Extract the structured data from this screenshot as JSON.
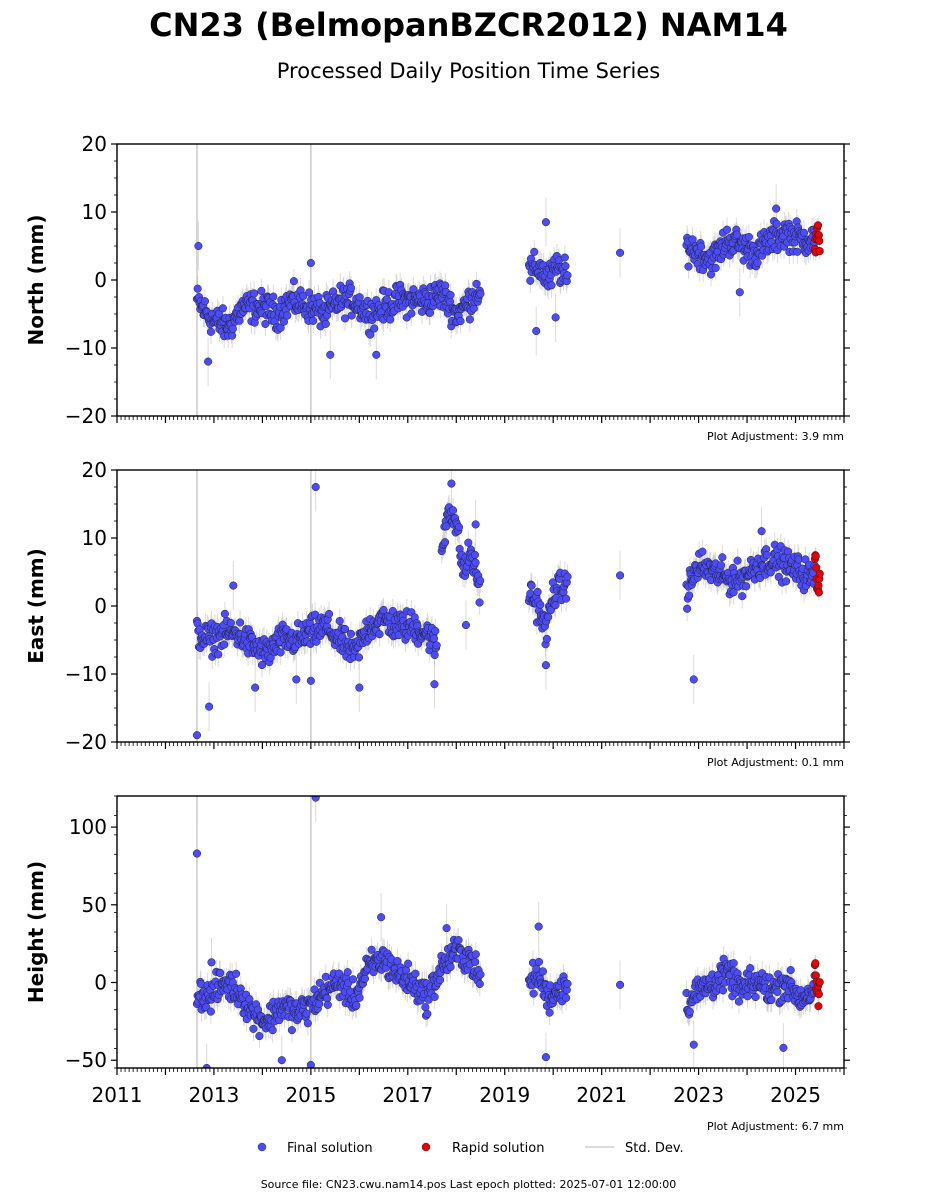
{
  "title": "CN23 (BelmopanBZCR2012) NAM14",
  "subtitle": "Processed Daily Position Time Series",
  "legend": {
    "placement": "bottom-center",
    "items": [
      {
        "label": "Final solution",
        "color": "#4b4bff"
      },
      {
        "label": "Rapid solution",
        "color": "#e60000"
      },
      {
        "label": "Std. Dev.",
        "color": "#cfcfcf"
      }
    ]
  },
  "footer": "Source file: CN23.cwu.nam14.pos  Last epoch plotted: 2025-07-01 12:00:00",
  "colors": {
    "final": "#4b4bff",
    "rapid": "#e60000",
    "stddev": "#bdbdbd"
  },
  "chart_data": [
    {
      "type": "scatter",
      "ylabel": "North (mm)",
      "ylim": [
        -20,
        20
      ],
      "yticks": [
        -20,
        -10,
        0,
        10,
        20
      ],
      "xlim": [
        2011,
        2026
      ],
      "xticks": [
        2011,
        2013,
        2015,
        2017,
        2019,
        2021,
        2023,
        2025
      ],
      "show_x_tick_labels": false,
      "adjustment": "Plot Adjustment: 3.9 mm",
      "segments": [
        {
          "x": [
            2012.65,
            2012.85,
            2013.0,
            2013.3,
            2013.6,
            2014.0,
            2014.3,
            2014.6,
            2015.0,
            2015.3,
            2015.6,
            2015.9,
            2016.2,
            2016.5,
            2016.8,
            2017.1,
            2017.4,
            2017.7,
            2018.0,
            2018.3,
            2018.5
          ],
          "y": [
            -3,
            -5,
            -6,
            -7,
            -4,
            -4,
            -5,
            -3,
            -4,
            -5,
            -3,
            -3,
            -5,
            -4,
            -3,
            -3,
            -3,
            -2,
            -5,
            -3,
            -1
          ]
        },
        {
          "x": [
            2019.5,
            2019.7,
            2019.9,
            2020.1,
            2020.3
          ],
          "y": [
            1,
            2,
            0,
            2,
            0
          ]
        },
        {
          "x": [
            2022.75,
            2023.0,
            2023.3,
            2023.6,
            2023.9,
            2024.2,
            2024.5,
            2024.8,
            2025.1,
            2025.4
          ],
          "y": [
            5,
            4,
            3,
            6,
            5,
            4,
            6,
            7,
            6,
            6
          ]
        }
      ],
      "outliers": [
        {
          "x": 2012.68,
          "y": 5
        },
        {
          "x": 2012.88,
          "y": -12
        },
        {
          "x": 2015.0,
          "y": 2.5
        },
        {
          "x": 2015.4,
          "y": -11
        },
        {
          "x": 2016.35,
          "y": -11
        },
        {
          "x": 2019.65,
          "y": -7.5
        },
        {
          "x": 2019.85,
          "y": 8.5
        },
        {
          "x": 2020.05,
          "y": -5.5
        },
        {
          "x": 2021.38,
          "y": 4
        },
        {
          "x": 2023.85,
          "y": -1.8
        },
        {
          "x": 2024.6,
          "y": 10.5
        }
      ],
      "rapid": {
        "x_start": 2025.4,
        "x_end": 2025.5,
        "y": [
          5,
          6,
          7,
          6,
          5
        ]
      }
    },
    {
      "type": "scatter",
      "ylabel": "East (mm)",
      "ylim": [
        -20,
        20
      ],
      "yticks": [
        -20,
        -10,
        0,
        10,
        20
      ],
      "xlim": [
        2011,
        2026
      ],
      "xticks": [
        2011,
        2013,
        2015,
        2017,
        2019,
        2021,
        2023,
        2025
      ],
      "show_x_tick_labels": false,
      "adjustment": "Plot Adjustment: 0.1 mm",
      "segments": [
        {
          "x": [
            2012.65,
            2012.9,
            2013.2,
            2013.5,
            2013.8,
            2014.1,
            2014.4,
            2014.7,
            2015.0,
            2015.3,
            2015.6,
            2015.9,
            2016.2,
            2016.5,
            2016.8,
            2017.1,
            2017.4,
            2017.6
          ],
          "y": [
            -4,
            -5,
            -4,
            -4,
            -6,
            -7,
            -5,
            -5,
            -4,
            -3,
            -5,
            -7,
            -3,
            -2,
            -3,
            -3,
            -4,
            -6
          ]
        },
        {
          "x": [
            2017.7,
            2017.85,
            2018.0,
            2018.15,
            2018.3,
            2018.5
          ],
          "y": [
            8,
            15,
            12,
            5,
            8,
            2
          ]
        },
        {
          "x": [
            2019.5,
            2019.7,
            2019.85,
            2020.0,
            2020.3
          ],
          "y": [
            2,
            0,
            -4,
            2,
            3
          ]
        },
        {
          "x": [
            2022.75,
            2023.0,
            2023.3,
            2023.6,
            2023.9,
            2024.2,
            2024.5,
            2024.8,
            2025.1,
            2025.4
          ],
          "y": [
            2,
            6,
            5,
            4,
            4,
            6,
            7,
            6,
            5,
            4
          ]
        }
      ],
      "outliers": [
        {
          "x": 2012.65,
          "y": -19
        },
        {
          "x": 2012.9,
          "y": -14.8
        },
        {
          "x": 2013.4,
          "y": 3
        },
        {
          "x": 2013.85,
          "y": -12
        },
        {
          "x": 2014.7,
          "y": -10.8
        },
        {
          "x": 2015.0,
          "y": -11
        },
        {
          "x": 2015.1,
          "y": 17.5
        },
        {
          "x": 2016.0,
          "y": -12
        },
        {
          "x": 2017.55,
          "y": -11.5
        },
        {
          "x": 2017.9,
          "y": 18
        },
        {
          "x": 2018.2,
          "y": -2.8
        },
        {
          "x": 2018.4,
          "y": 12
        },
        {
          "x": 2019.85,
          "y": -8.7
        },
        {
          "x": 2021.38,
          "y": 4.5
        },
        {
          "x": 2022.9,
          "y": -10.8
        },
        {
          "x": 2024.3,
          "y": 11
        }
      ],
      "rapid": {
        "x_start": 2025.4,
        "x_end": 2025.5,
        "y": [
          7.5,
          5,
          3,
          2,
          4
        ]
      }
    },
    {
      "type": "scatter",
      "ylabel": "Height (mm)",
      "ylim": [
        -55,
        120
      ],
      "yticks": [
        -50,
        0,
        50,
        100
      ],
      "xlim": [
        2011,
        2026
      ],
      "xticks": [
        2011,
        2013,
        2015,
        2017,
        2019,
        2021,
        2023,
        2025
      ],
      "show_x_tick_labels": true,
      "adjustment": "Plot Adjustment: 6.7 mm",
      "segments": [
        {
          "x": [
            2012.65,
            2012.9,
            2013.2,
            2013.5,
            2013.8,
            2014.1,
            2014.4,
            2014.7,
            2015.0,
            2015.3,
            2015.6,
            2015.9,
            2016.2,
            2016.5,
            2016.8,
            2017.1,
            2017.4,
            2017.7,
            2018.0,
            2018.3,
            2018.5
          ],
          "y": [
            -5,
            -10,
            0,
            -5,
            -20,
            -25,
            -15,
            -20,
            -15,
            -5,
            0,
            -10,
            10,
            15,
            5,
            0,
            -10,
            10,
            20,
            15,
            0
          ]
        },
        {
          "x": [
            2019.5,
            2019.7,
            2019.9,
            2020.1,
            2020.3
          ],
          "y": [
            0,
            5,
            -10,
            -5,
            0
          ]
        },
        {
          "x": [
            2022.75,
            2023.0,
            2023.3,
            2023.6,
            2023.9,
            2024.2,
            2024.5,
            2024.8,
            2025.1,
            2025.4
          ],
          "y": [
            -15,
            -5,
            0,
            5,
            -5,
            0,
            -5,
            0,
            -10,
            -5
          ]
        }
      ],
      "outliers": [
        {
          "x": 2012.65,
          "y": 83
        },
        {
          "x": 2012.85,
          "y": -55
        },
        {
          "x": 2012.95,
          "y": 13
        },
        {
          "x": 2014.4,
          "y": -50
        },
        {
          "x": 2015.0,
          "y": -53
        },
        {
          "x": 2015.1,
          "y": 119
        },
        {
          "x": 2016.45,
          "y": 42
        },
        {
          "x": 2017.8,
          "y": 35
        },
        {
          "x": 2019.7,
          "y": 36
        },
        {
          "x": 2019.85,
          "y": -48
        },
        {
          "x": 2021.38,
          "y": -1.5
        },
        {
          "x": 2022.9,
          "y": -40
        },
        {
          "x": 2024.75,
          "y": -42
        }
      ],
      "rapid": {
        "x_start": 2025.4,
        "x_end": 2025.5,
        "y": [
          8,
          0,
          -5,
          -12,
          -3
        ]
      }
    }
  ]
}
